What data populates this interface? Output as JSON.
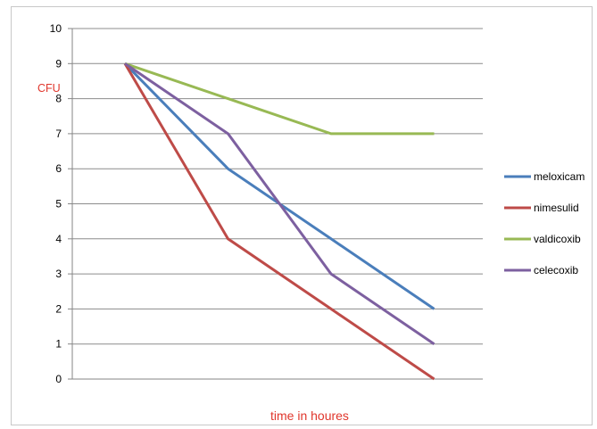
{
  "chart_data": {
    "type": "line",
    "title": "",
    "xlabel": "time in houres",
    "ylabel": "CFU",
    "ylim": [
      0,
      10
    ],
    "y_ticks": [
      0,
      1,
      2,
      3,
      4,
      5,
      6,
      7,
      8,
      9,
      10
    ],
    "x": [
      1,
      2,
      3,
      4
    ],
    "grid": true,
    "legend_position": "right",
    "series": [
      {
        "name": "meloxicam",
        "color": "#4a7ebb",
        "values": [
          9,
          6,
          4,
          2
        ]
      },
      {
        "name": "nimesulid",
        "color": "#be4b48",
        "values": [
          9,
          4,
          2,
          0
        ]
      },
      {
        "name": "valdicoxib",
        "color": "#98b954",
        "values": [
          9,
          8,
          7,
          7
        ]
      },
      {
        "name": "celecoxib",
        "color": "#7d60a0",
        "values": [
          9,
          7,
          3,
          1
        ]
      }
    ],
    "colors": {
      "grid": "#8c8c8c",
      "axis": "#868686",
      "axis_label": "#e0362c",
      "tick_label": "#000000"
    }
  }
}
